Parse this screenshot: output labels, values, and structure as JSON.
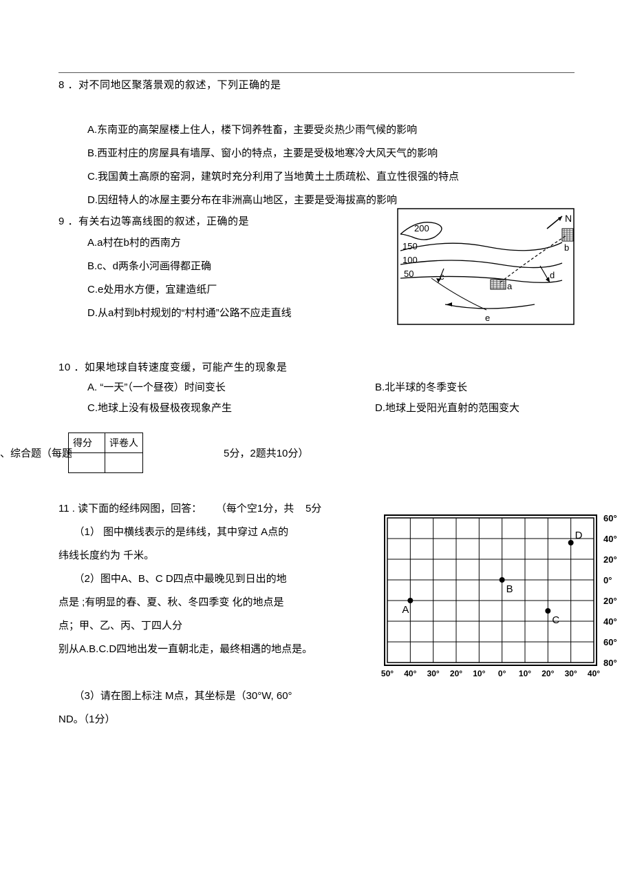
{
  "text_color": "#000000",
  "bg_color": "#ffffff",
  "font_body_pt": 11,
  "font_label_pt": 10,
  "q8": {
    "stem": "8 ．对不同地区聚落景观的叙述，下列正确的是",
    "A": "A.东南亚的高架屋楼上住人，楼下饲养牲畜，主要受炎热少雨气候的影响",
    "B": "B.西亚村庄的房屋具有墙厚、窗小的特点，主要是受极地寒冷大风天气的影响",
    "C": "C.我国黄土高原的窑洞，建筑时充分利用了当地黄土土质疏松、直立性很强的特点",
    "D": "D.因纽特人的冰屋主要分布在非洲高山地区，主要是受海拔高的影响"
  },
  "q9": {
    "stem": "9 ．有关右边等高线图的叙述，正确的是",
    "A": "A.a村在b村的西南方",
    "B": "B.c、d两条小河画得都正确",
    "C": "C.e处用水方便，宜建造纸厂",
    "D": "D.从a村到b村规划的“村村通”公路不应走直线",
    "figure": {
      "type": "map-contour",
      "frame_color": "#000000",
      "fill_color": "#ffffff",
      "hatch_color": "#555555",
      "contours": [
        "200",
        "150",
        "100",
        "50"
      ],
      "labels": [
        "N",
        "b",
        "c",
        "a",
        "d",
        "e"
      ]
    }
  },
  "q10": {
    "stem": "10 ．如果地球自转速度变缓，可能产生的现象是",
    "A": "A. “一天”（一个昼夜）时间变长",
    "B": "B.北半球的冬季变长",
    "C": "C.地球上没有极昼极夜现象产生",
    "D": "D.地球上受阳光直射的范围变大"
  },
  "scorebox": {
    "h1": "得分",
    "h2": "评卷人"
  },
  "section2": {
    "title": "、综合题（每题",
    "after": "5分，2题共10分）"
  },
  "q11": {
    "stem_a": "11 . 读下面的经纬网图，回答：",
    "stem_b": "（每个空1分，共",
    "stem_c": "5分",
    "p1_a": "（1）  图中横线表示的是纬线，其中穿过 A点的",
    "p1_b": "纬线长度约为 千米。",
    "p2_a": "（2）图中A、B、C D四点中最晚见到日出的地",
    "p2_b": "点是 ;有明显的春、夏、秋、冬四季变 化的地点是",
    "p2_c": "点；甲、乙、丙、丁四人分",
    "p2_d": "别从A.B.C.D四地出发一直朝北走，最终相遇的地点是。",
    "p3_a": "（3）请在图上标注 M点，其坐标是（30°W, 60°",
    "p3_b": "ND。（1分）",
    "figure": {
      "type": "lat-lon-grid",
      "frame_color": "#000000",
      "bg_color": "#ffffff",
      "x_labels": [
        "50°",
        "40°",
        "30°",
        "20°",
        "10°",
        "0°",
        "10°",
        "20°",
        "30°",
        "40°"
      ],
      "y_labels": [
        "60°",
        "40°",
        "20°",
        "0°",
        "20°",
        "40°",
        "60°",
        "80°"
      ],
      "points": {
        "A": {
          "col": 1,
          "row": 4,
          "label": "A"
        },
        "B": {
          "col": 5,
          "row": 3,
          "label": "B"
        },
        "C": {
          "col": 7,
          "row": 4.5,
          "label": "C"
        },
        "D": {
          "col": 8,
          "row": 1.2,
          "label": "D"
        }
      }
    }
  }
}
